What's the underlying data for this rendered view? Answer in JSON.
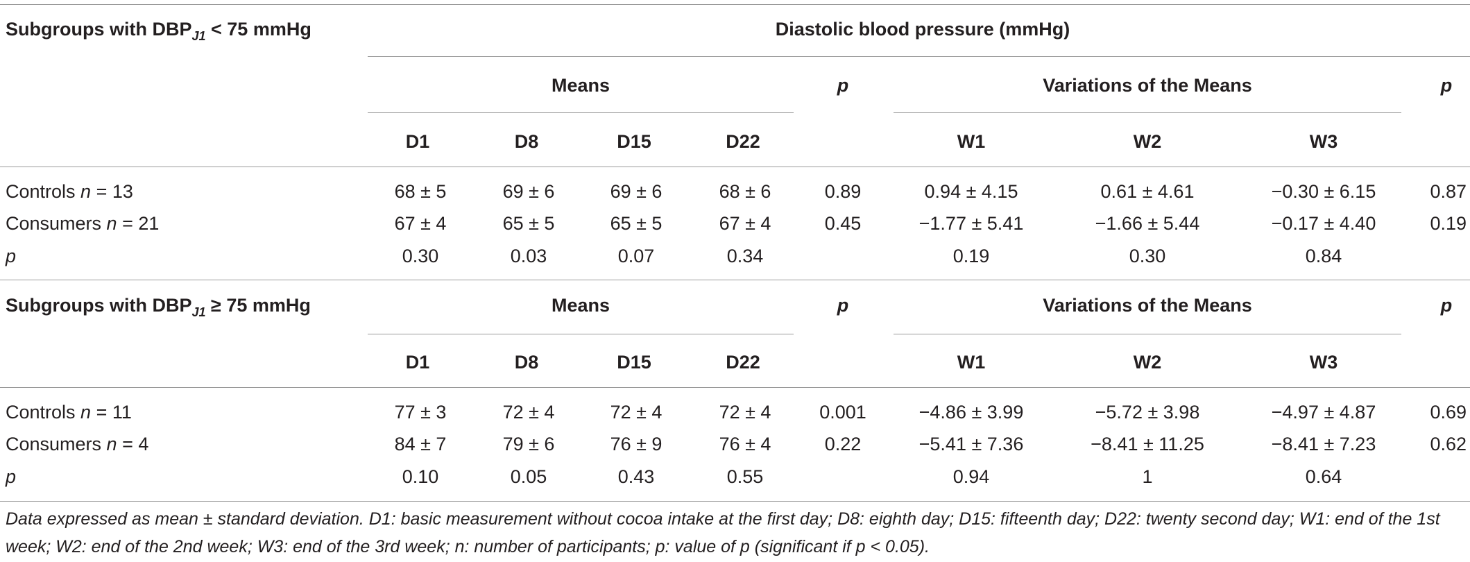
{
  "header": {
    "diastolic_title": "Diastolic blood pressure (mmHg)"
  },
  "sections": [
    {
      "title_pre": "Subgroups with DBP",
      "title_sub": "J1",
      "title_post": " < 75 mmHg",
      "means_label": "Means",
      "p_label": "p",
      "variations_label": "Variations of the Means",
      "p2_label": "p",
      "cols": [
        "D1",
        "D8",
        "D15",
        "D22"
      ],
      "wcols": [
        "W1",
        "W2",
        "W3"
      ],
      "rows": [
        {
          "label_pre": "Controls ",
          "label_n": "n",
          "label_post": " = 13",
          "d": [
            "68 ± 5",
            "69 ± 6",
            "69 ± 6",
            "68 ± 6"
          ],
          "p": "0.89",
          "w": [
            "0.94 ± 4.15",
            "0.61 ± 4.61",
            "−0.30 ± 6.15"
          ],
          "p2": "0.87"
        },
        {
          "label_pre": "Consumers ",
          "label_n": "n",
          "label_post": " = 21",
          "d": [
            "67 ± 4",
            "65 ± 5",
            "65 ± 5",
            "67 ± 4"
          ],
          "p": "0.45",
          "w": [
            "−1.77 ± 5.41",
            "−1.66 ± 5.44",
            "−0.17 ± 4.40"
          ],
          "p2": "0.19"
        },
        {
          "label_pre": "",
          "label_n": "p",
          "label_post": "",
          "d": [
            "0.30",
            "0.03",
            "0.07",
            "0.34"
          ],
          "p": "",
          "w": [
            "0.19",
            "0.30",
            "0.84"
          ],
          "p2": ""
        }
      ]
    },
    {
      "title_pre": "Subgroups with DBP",
      "title_sub": "J1",
      "title_post": " ≥ 75 mmHg",
      "means_label": "Means",
      "p_label": "p",
      "variations_label": "Variations of the Means",
      "p2_label": "p",
      "cols": [
        "D1",
        "D8",
        "D15",
        "D22"
      ],
      "wcols": [
        "W1",
        "W2",
        "W3"
      ],
      "rows": [
        {
          "label_pre": "Controls ",
          "label_n": "n",
          "label_post": " = 11",
          "d": [
            "77 ± 3",
            "72 ± 4",
            "72 ± 4",
            "72 ± 4"
          ],
          "p": "0.001",
          "w": [
            "−4.86 ± 3.99",
            "−5.72 ± 3.98",
            "−4.97 ± 4.87"
          ],
          "p2": "0.69"
        },
        {
          "label_pre": "Consumers ",
          "label_n": "n",
          "label_post": " = 4",
          "d": [
            "84 ± 7",
            "79 ± 6",
            "76 ± 9",
            "76 ± 4"
          ],
          "p": "0.22",
          "w": [
            "−5.41 ± 7.36",
            "−8.41 ± 11.25",
            "−8.41 ± 7.23"
          ],
          "p2": "0.62"
        },
        {
          "label_pre": "",
          "label_n": "p",
          "label_post": "",
          "d": [
            "0.10",
            "0.05",
            "0.43",
            "0.55"
          ],
          "p": "",
          "w": [
            "0.94",
            "1",
            "0.64"
          ],
          "p2": ""
        }
      ]
    }
  ],
  "footnote": "Data expressed as mean ± standard deviation. D1: basic measurement without cocoa intake at the first day; D8: eighth day; D15: fifteenth day; D22: twenty second day; W1: end of the 1st week; W2: end of the 2nd week; W3: end of the 3rd week; n: number of participants; p: value of p (significant if p < 0.05)."
}
